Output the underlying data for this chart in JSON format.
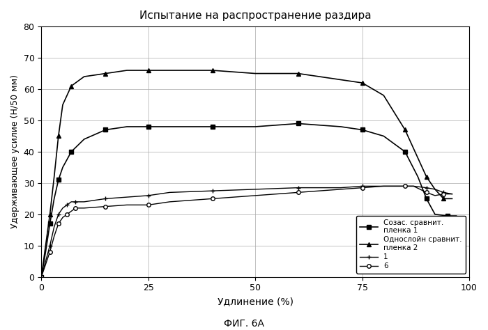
{
  "title": "Испытание на распространение раздира",
  "xlabel": "Удлинение (%)",
  "ylabel": "Удерживающее усилие (Н/50 мм)",
  "figcaption": "ФИГ. 6А",
  "xlim": [
    0,
    100
  ],
  "ylim": [
    0,
    80
  ],
  "xticks": [
    0,
    25,
    50,
    75,
    100
  ],
  "yticks": [
    0,
    10,
    20,
    30,
    40,
    50,
    60,
    70,
    80
  ],
  "legend_labels": [
    "Созас. сравнит.\nпленка 1",
    "Однослойн сравнит.\nпленка 2",
    "1",
    "6"
  ],
  "series": {
    "coex_comp": {
      "color": "#000000",
      "marker": "s",
      "markersize": 4,
      "linewidth": 1.2,
      "x": [
        0,
        1,
        2,
        3,
        4,
        5,
        7,
        10,
        15,
        20,
        25,
        30,
        40,
        50,
        60,
        70,
        75,
        80,
        85,
        88,
        90,
        92,
        95,
        97
      ],
      "y": [
        0,
        8,
        17,
        25,
        31,
        35,
        40,
        44,
        47,
        48,
        48,
        48,
        48,
        48,
        49,
        48,
        47,
        45,
        40,
        32,
        25,
        20,
        19.5,
        19.5
      ]
    },
    "mono_comp": {
      "color": "#000000",
      "marker": "^",
      "markersize": 4,
      "linewidth": 1.2,
      "x": [
        0,
        1,
        2,
        3,
        4,
        5,
        7,
        10,
        15,
        20,
        25,
        30,
        40,
        50,
        60,
        70,
        75,
        80,
        85,
        88,
        90,
        92,
        94,
        96
      ],
      "y": [
        0,
        10,
        20,
        32,
        45,
        55,
        61,
        64,
        65,
        66,
        66,
        66,
        66,
        65,
        65,
        63,
        62,
        58,
        47,
        38,
        32,
        28,
        25,
        25
      ]
    },
    "series1": {
      "color": "#000000",
      "marker": "+",
      "markersize": 5,
      "linewidth": 1.0,
      "x": [
        0,
        1,
        2,
        3,
        4,
        5,
        6,
        7,
        8,
        10,
        15,
        20,
        25,
        30,
        40,
        50,
        60,
        70,
        75,
        80,
        85,
        87,
        90,
        92,
        94,
        96
      ],
      "y": [
        0,
        5,
        10,
        16,
        20,
        22,
        23,
        24,
        24,
        24,
        25,
        25.5,
        26,
        27,
        27.5,
        28,
        28.5,
        28.5,
        29,
        29,
        29,
        29,
        28.5,
        28,
        27,
        26.5
      ]
    },
    "series6": {
      "color": "#000000",
      "marker": "o",
      "markersize": 4,
      "linewidth": 1.0,
      "x": [
        0,
        1,
        2,
        3,
        4,
        5,
        6,
        7,
        8,
        10,
        15,
        20,
        25,
        30,
        40,
        50,
        60,
        70,
        75,
        80,
        85,
        87,
        90,
        92,
        94,
        96
      ],
      "y": [
        0,
        4,
        8,
        13,
        17,
        19,
        20,
        21,
        22,
        22,
        22.5,
        23,
        23,
        24,
        25,
        26,
        27,
        28,
        28.5,
        29,
        29,
        29,
        27,
        26,
        26.5,
        26.5
      ]
    }
  }
}
